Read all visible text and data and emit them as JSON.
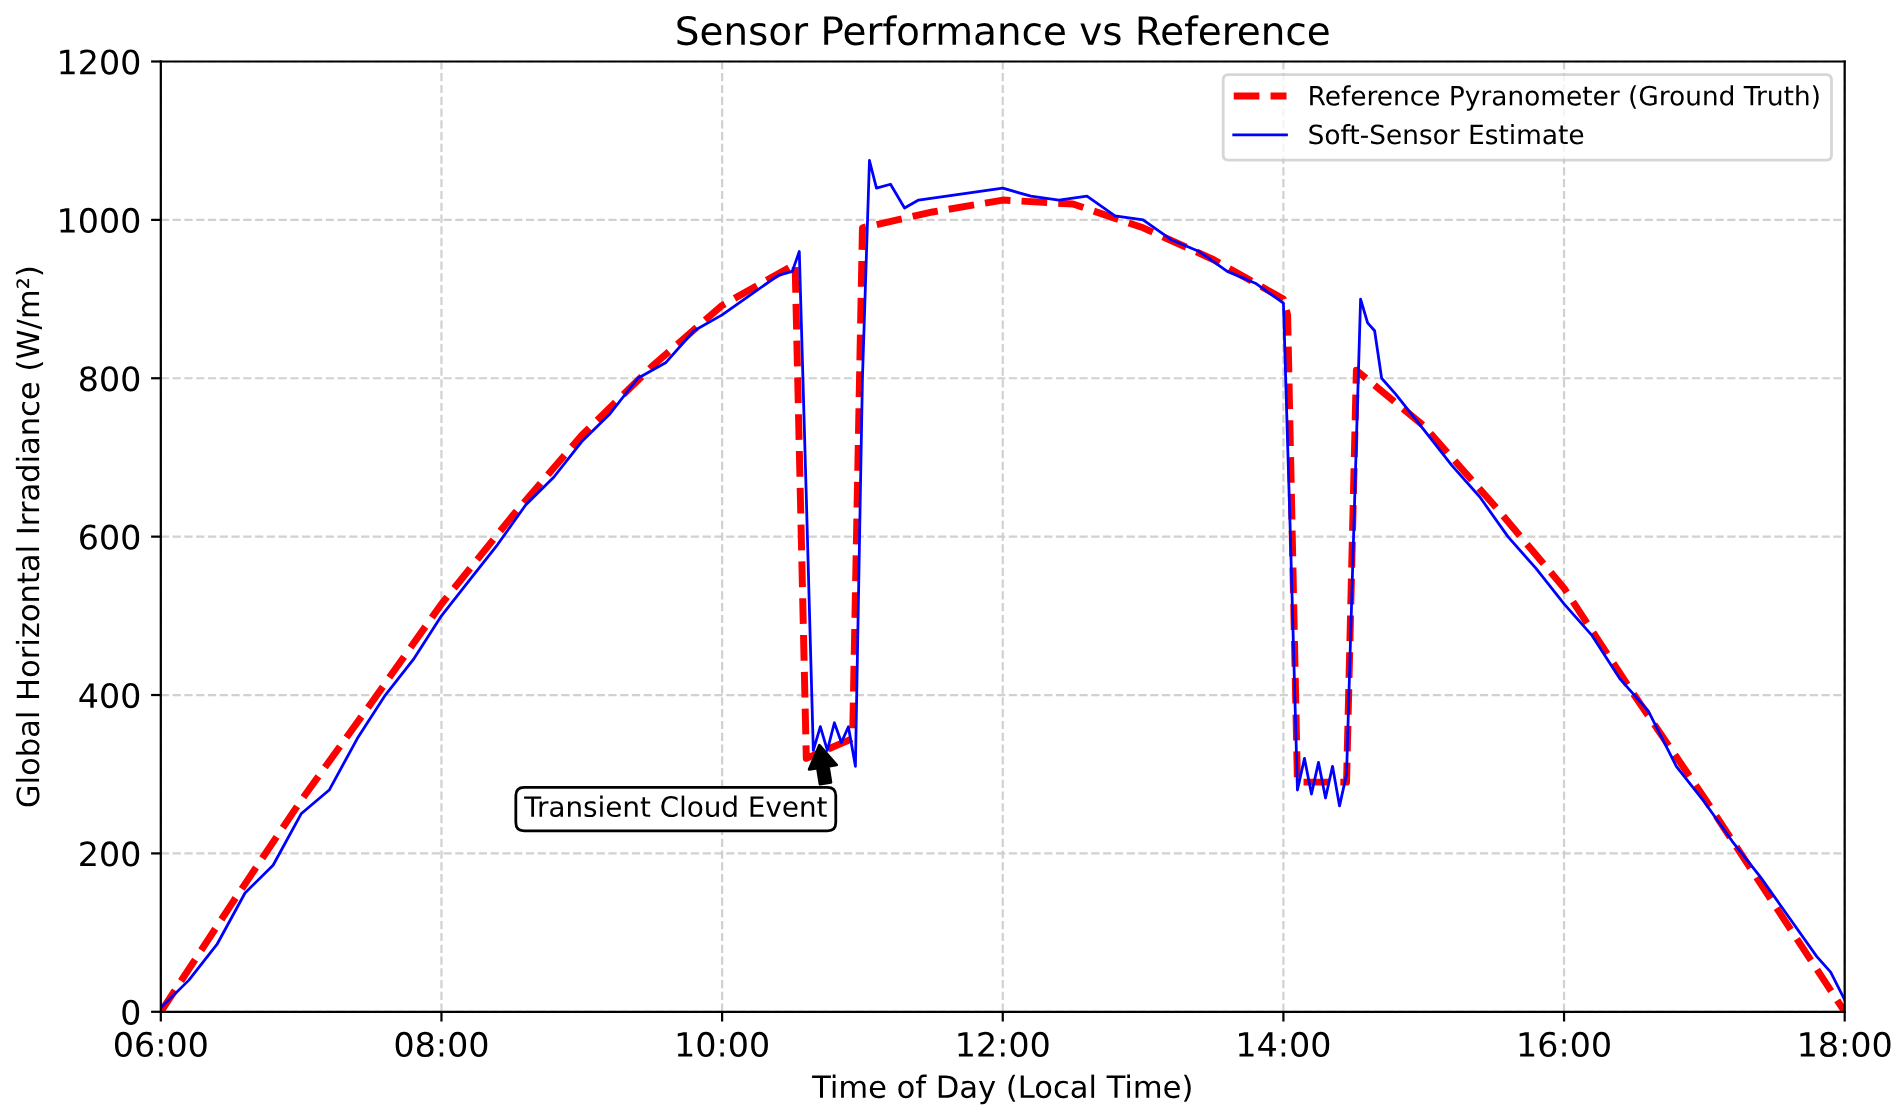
{
  "chart_data": {
    "type": "line",
    "title": "Sensor Performance vs Reference",
    "xlabel": "Time of Day (Local Time)",
    "ylabel": "Global Horizontal Irradiance (W/m²)",
    "xlim": [
      6,
      18
    ],
    "xticks": [
      {
        "value": 6,
        "label": "06:00"
      },
      {
        "value": 8,
        "label": "08:00"
      },
      {
        "value": 10,
        "label": "10:00"
      },
      {
        "value": 12,
        "label": "12:00"
      },
      {
        "value": 14,
        "label": "14:00"
      },
      {
        "value": 16,
        "label": "16:00"
      },
      {
        "value": 18,
        "label": "18:00"
      }
    ],
    "ylim": [
      0,
      1200
    ],
    "yticks": [
      0,
      200,
      400,
      600,
      800,
      1000,
      1200
    ],
    "grid": true,
    "legend": "top right",
    "series": [
      {
        "name": "Reference Pyranometer (Ground Truth)",
        "color": "#ff0000",
        "line_style": "dashed",
        "x": [
          6,
          6.5,
          7,
          7.5,
          8,
          8.5,
          9,
          9.5,
          10,
          10.5,
          10.52,
          10.6,
          10.93,
          11.0,
          11.5,
          12,
          12.5,
          13,
          13.5,
          14.0,
          14.03,
          14.1,
          14.45,
          14.52,
          15,
          15.5,
          16,
          16.5,
          17,
          17.5,
          18
        ],
        "values": [
          0,
          135,
          267,
          390,
          515,
          625,
          728,
          815,
          892,
          942,
          945,
          320,
          345,
          990,
          1010,
          1025,
          1020,
          990,
          950,
          900,
          880,
          290,
          290,
          810,
          740,
          640,
          535,
          400,
          270,
          135,
          0
        ]
      },
      {
        "name": "Soft-Sensor Estimate",
        "color": "#0000ff",
        "line_style": "solid",
        "x": [
          6.0,
          6.2,
          6.4,
          6.6,
          6.8,
          7.0,
          7.2,
          7.4,
          7.6,
          7.8,
          8.0,
          8.2,
          8.4,
          8.6,
          8.8,
          9.0,
          9.2,
          9.4,
          9.6,
          9.8,
          10.0,
          10.2,
          10.4,
          10.5,
          10.55,
          10.6,
          10.65,
          10.7,
          10.75,
          10.8,
          10.85,
          10.9,
          10.95,
          11.0,
          11.05,
          11.1,
          11.2,
          11.3,
          11.4,
          11.6,
          11.8,
          12.0,
          12.2,
          12.4,
          12.6,
          12.8,
          13.0,
          13.2,
          13.4,
          13.6,
          13.8,
          14.0,
          14.05,
          14.1,
          14.15,
          14.2,
          14.25,
          14.3,
          14.35,
          14.4,
          14.45,
          14.5,
          14.55,
          14.6,
          14.65,
          14.7,
          14.8,
          15.0,
          15.2,
          15.4,
          15.6,
          15.8,
          16.0,
          16.2,
          16.4,
          16.6,
          16.8,
          17.0,
          17.2,
          17.4,
          17.6,
          17.8,
          17.9,
          18.0
        ],
        "values": [
          5,
          40,
          85,
          150,
          185,
          250,
          280,
          345,
          400,
          445,
          500,
          545,
          590,
          640,
          675,
          720,
          755,
          800,
          820,
          860,
          880,
          905,
          930,
          935,
          960,
          650,
          330,
          360,
          330,
          365,
          340,
          360,
          310,
          800,
          1075,
          1040,
          1045,
          1015,
          1025,
          1030,
          1035,
          1040,
          1030,
          1025,
          1030,
          1005,
          1000,
          975,
          960,
          935,
          920,
          895,
          600,
          280,
          320,
          275,
          315,
          270,
          310,
          260,
          300,
          600,
          900,
          870,
          860,
          800,
          780,
          735,
          690,
          650,
          600,
          560,
          515,
          475,
          420,
          380,
          310,
          265,
          215,
          170,
          120,
          70,
          50,
          15
        ]
      }
    ],
    "annotations": [
      {
        "text": "Transient Cloud Event",
        "x": 10.69,
        "y": 340
      }
    ]
  }
}
